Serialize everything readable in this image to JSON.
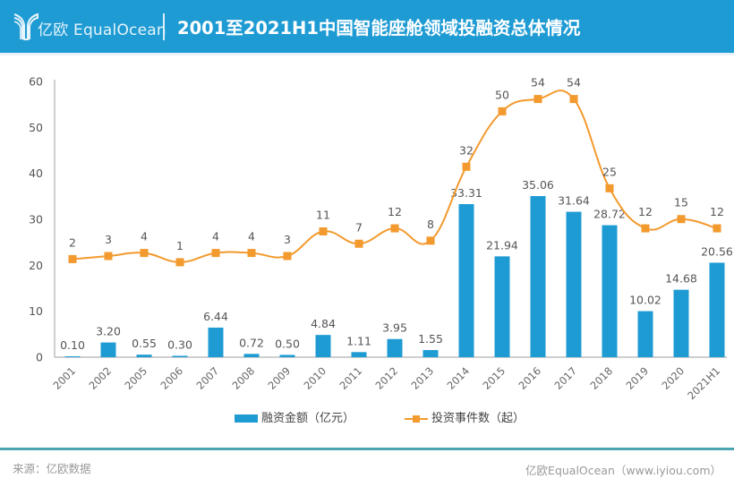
{
  "header": {
    "logo_text": "亿欧 EqualOcean",
    "title": "2001至2021H1中国智能座舱领域投融资总体情况"
  },
  "colors": {
    "header_bg": "#1f9bd4",
    "bar": "#1f9bd4",
    "line": "#f39a2e",
    "footer_line": "#4aa5b0"
  },
  "footer": {
    "source": "来源：亿欧数据",
    "credit": "亿欧EqualOcean（www.iyiou.com）"
  },
  "chart_data": {
    "type": "bar+line",
    "title": "2001至2021H1中国智能座舱领域投融资总体情况",
    "categories": [
      "2001",
      "2002",
      "2005",
      "2006",
      "2007",
      "2008",
      "2009",
      "2010",
      "2011",
      "2012",
      "2013",
      "2014",
      "2015",
      "2016",
      "2017",
      "2018",
      "2019",
      "2020",
      "2021H1"
    ],
    "yticks": [
      0,
      10,
      20,
      30,
      40,
      50,
      60
    ],
    "ylim": [
      0,
      60
    ],
    "grid": false,
    "legend_position": "bottom",
    "series": [
      {
        "name": "融资金额（亿元）",
        "type": "bar",
        "axis": "primary",
        "values": [
          0.1,
          3.2,
          0.55,
          0.3,
          6.44,
          0.72,
          0.5,
          4.84,
          1.11,
          3.95,
          1.55,
          33.31,
          21.94,
          35.06,
          31.64,
          28.72,
          10.02,
          14.68,
          20.56
        ],
        "labels": [
          "0.10",
          "3.20",
          "0.55",
          "0.30",
          "6.44",
          "0.72",
          "0.50",
          "4.84",
          "1.11",
          "3.95",
          "1.55",
          "33.31",
          "21.94",
          "35.06",
          "31.64",
          "28.72",
          "10.02",
          "14.68",
          "20.56"
        ]
      },
      {
        "name": "投资事件数（起）",
        "type": "line",
        "axis": "secondary (hidden)",
        "smooth": true,
        "marker": "square",
        "values": [
          2,
          3,
          4,
          1,
          4,
          4,
          3,
          11,
          7,
          12,
          8,
          32,
          50,
          54,
          54,
          25,
          12,
          15,
          12
        ],
        "labels": [
          "2",
          "3",
          "4",
          "1",
          "4",
          "4",
          "3",
          "11",
          "7",
          "12",
          "8",
          "32",
          "50",
          "54",
          "54",
          "25",
          "12",
          "15",
          "12"
        ]
      }
    ]
  }
}
